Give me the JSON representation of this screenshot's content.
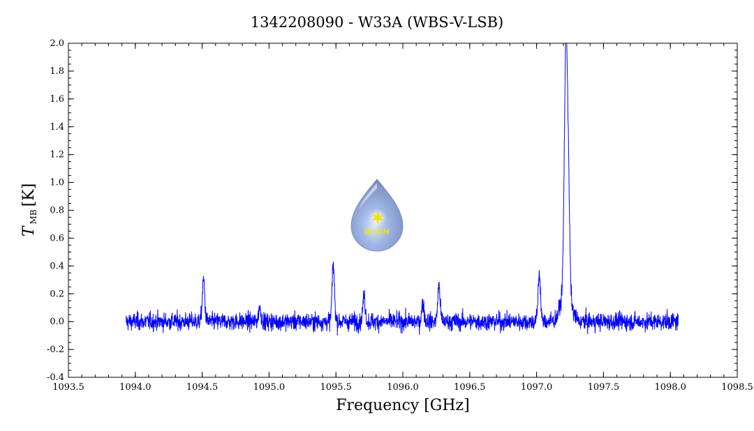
{
  "chart_data": {
    "type": "line",
    "title": "1342208090 - W33A (WBS-V-LSB)",
    "xlabel": "Frequency [GHz]",
    "ylabel_main": "T",
    "ylabel_sub": "MB",
    "ylabel_unit": "[K]",
    "xlim": [
      1093.5,
      1098.5
    ],
    "ylim": [
      -0.4,
      2.0
    ],
    "x_ticks": [
      "1093.5",
      "1094.0",
      "1094.5",
      "1095.0",
      "1095.5",
      "1096.0",
      "1096.5",
      "1097.0",
      "1097.5",
      "1098.0",
      "1098.5"
    ],
    "y_ticks": [
      "-0.4",
      "-0.2",
      "0.0",
      "0.2",
      "0.4",
      "0.6",
      "0.8",
      "1.0",
      "1.2",
      "1.4",
      "1.6",
      "1.8",
      "2.0"
    ],
    "grid": false,
    "series": [
      {
        "color": "#0000ff",
        "x_range": [
          1093.93,
          1098.06
        ],
        "baseline_noise_rms": 0.045,
        "peaks": [
          {
            "x": 1094.51,
            "y": 0.3
          },
          {
            "x": 1094.93,
            "y": 0.1
          },
          {
            "x": 1095.48,
            "y": 0.4
          },
          {
            "x": 1095.71,
            "y": 0.18
          },
          {
            "x": 1096.15,
            "y": 0.13
          },
          {
            "x": 1096.27,
            "y": 0.26
          },
          {
            "x": 1097.02,
            "y": 0.35
          },
          {
            "x": 1097.22,
            "y": 1.81
          },
          {
            "x": 1097.24,
            "y": 0.5
          }
        ]
      }
    ]
  },
  "logo": {
    "text": "WISH",
    "icon": "water-drop-star-icon",
    "colors": {
      "drop": "#8fa8d8",
      "star": "#f2e600"
    }
  }
}
